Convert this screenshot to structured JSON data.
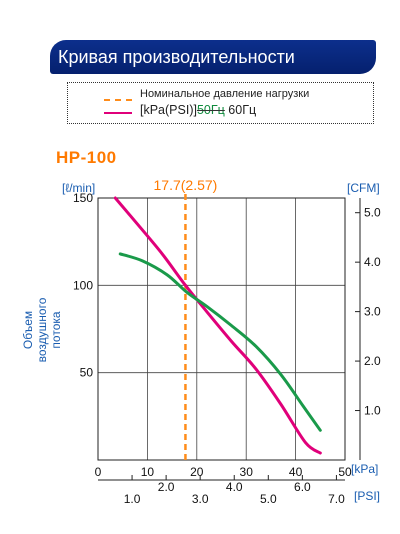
{
  "banner_title": "Кривая производительности",
  "legend": {
    "line1": "Номинальное давление нагрузки",
    "unit_text": "[kPa(PSI)]",
    "hz50": "50Гц",
    "hz60": "60Гц"
  },
  "model": "HP-100",
  "chart_data": {
    "type": "line",
    "xlabel_kpa": "[kPa]",
    "xlabel_psi": "[PSI]",
    "ylabel_left_unit": "[ℓ/min]",
    "ylabel_right_unit": "[CFM]",
    "ylabel_left_words": [
      "Объем",
      "воздушного",
      "потока"
    ],
    "xlim": [
      0,
      50
    ],
    "ylim": [
      0,
      150
    ],
    "x_ticks": [
      "0",
      "10",
      "20",
      "30",
      "40",
      "50"
    ],
    "y_ticks": [
      "50",
      "100",
      "150"
    ],
    "cfm_ticks": [
      "1.0",
      "2.0",
      "3.0",
      "4.0",
      "5.0"
    ],
    "psi_ticks": [
      "1.0",
      "2.0",
      "3.0",
      "4.0",
      "5.0",
      "6.0",
      "7.0"
    ],
    "rated_pressure": {
      "kpa": 17.7,
      "label": "17.7(2.57)",
      "color": "#ff8c1a"
    },
    "series": [
      {
        "color": "#e0007a",
        "points": [
          [
            3.5,
            150
          ],
          [
            8,
            135
          ],
          [
            13,
            118
          ],
          [
            17.7,
            100
          ],
          [
            22,
            85
          ],
          [
            27,
            68
          ],
          [
            32,
            52
          ],
          [
            37,
            32
          ],
          [
            42,
            10
          ],
          [
            45,
            4
          ]
        ]
      },
      {
        "color": "#1a9a4a",
        "points": [
          [
            4.5,
            118
          ],
          [
            9,
            114
          ],
          [
            14,
            106
          ],
          [
            18,
            96
          ],
          [
            22,
            88
          ],
          [
            27,
            77
          ],
          [
            32,
            65
          ],
          [
            37,
            49
          ],
          [
            41.5,
            31
          ],
          [
            45,
            17
          ]
        ]
      }
    ]
  }
}
